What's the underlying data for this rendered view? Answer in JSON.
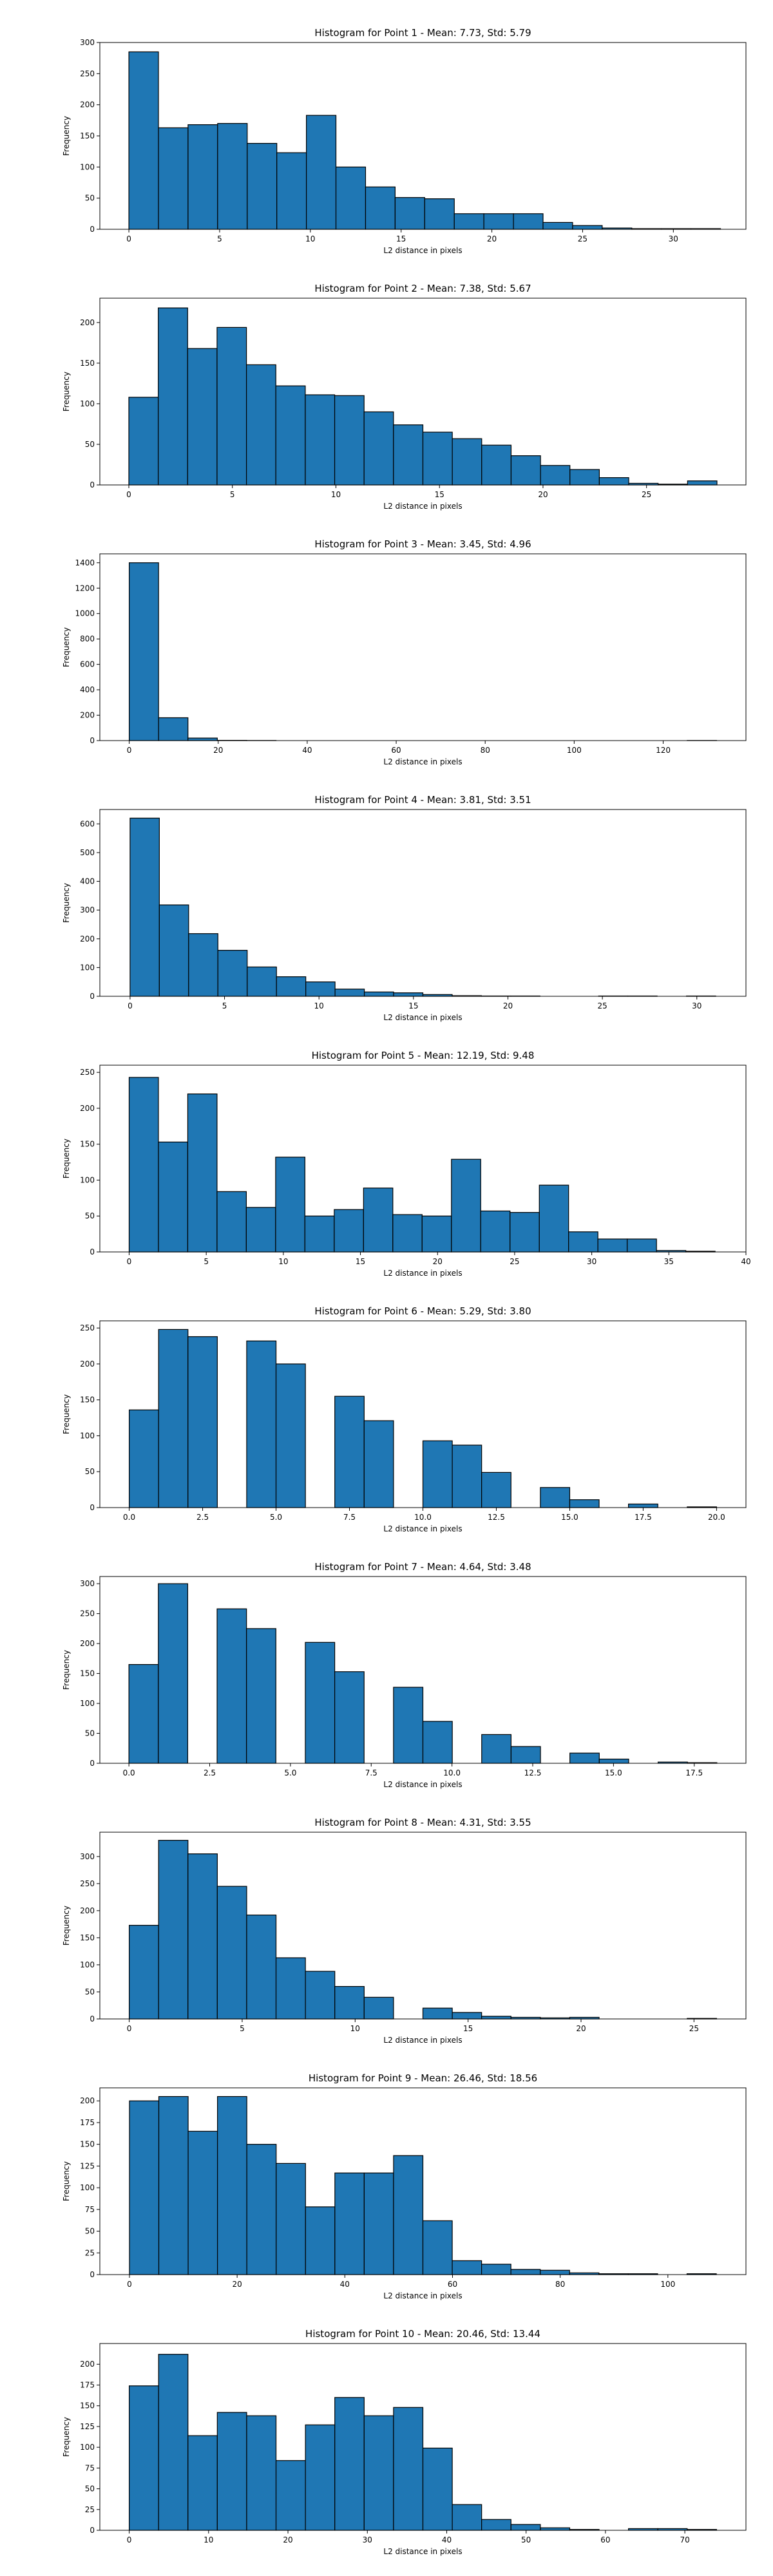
{
  "chart_data": [
    {
      "type": "bar",
      "title": "Histogram for Point 1 - Mean: 7.73, Std: 5.79",
      "xlabel": "L2 distance in pixels",
      "ylabel": "Frequency",
      "bin_start": 0,
      "bin_width": 1.63,
      "values": [
        285,
        163,
        168,
        170,
        138,
        123,
        183,
        100,
        68,
        51,
        49,
        25,
        25,
        25,
        11,
        6,
        2,
        1,
        1,
        1
      ],
      "xlim": [
        -1.6,
        34.0
      ],
      "ylim": [
        0,
        300
      ],
      "xticks": [
        0,
        5,
        10,
        15,
        20,
        25,
        30
      ],
      "xtick_labels": [
        "0",
        "5",
        "10",
        "15",
        "20",
        "25",
        "30"
      ],
      "yticks": [
        0,
        50,
        100,
        150,
        200,
        250,
        300
      ],
      "ytick_labels": [
        "0",
        "50",
        "100",
        "150",
        "200",
        "250",
        "300"
      ],
      "grid": false
    },
    {
      "type": "bar",
      "title": "Histogram for Point 2 - Mean: 7.38, Std: 5.67",
      "xlabel": "L2 distance in pixels",
      "ylabel": "Frequency",
      "bin_start": 0,
      "bin_width": 1.42,
      "values": [
        108,
        218,
        168,
        194,
        148,
        122,
        111,
        110,
        90,
        74,
        65,
        57,
        49,
        36,
        24,
        19,
        9,
        2,
        1,
        5
      ],
      "xlim": [
        -1.4,
        29.8
      ],
      "ylim": [
        0,
        230
      ],
      "xticks": [
        0,
        5,
        10,
        15,
        20,
        25
      ],
      "xtick_labels": [
        "0",
        "5",
        "10",
        "15",
        "20",
        "25"
      ],
      "yticks": [
        0,
        50,
        100,
        150,
        200
      ],
      "ytick_labels": [
        "0",
        "50",
        "100",
        "150",
        "200"
      ],
      "grid": false
    },
    {
      "type": "bar",
      "title": "Histogram for Point 3 - Mean: 3.45, Std: 4.96",
      "xlabel": "L2 distance in pixels",
      "ylabel": "Frequency",
      "bin_start": 0,
      "bin_width": 6.6,
      "values": [
        1400,
        180,
        20,
        2,
        1,
        0,
        0,
        0,
        0,
        0,
        0,
        0,
        0,
        0,
        0,
        0,
        0,
        0,
        0,
        1
      ],
      "xlim": [
        -6.6,
        138.6
      ],
      "ylim": [
        0,
        1470
      ],
      "xticks": [
        0,
        20,
        40,
        60,
        80,
        100,
        120
      ],
      "xtick_labels": [
        "0",
        "20",
        "40",
        "60",
        "80",
        "100",
        "120"
      ],
      "yticks": [
        0,
        200,
        400,
        600,
        800,
        1000,
        1200,
        1400
      ],
      "ytick_labels": [
        "0",
        "200",
        "400",
        "600",
        "800",
        "1000",
        "1200",
        "1400"
      ],
      "grid": false
    },
    {
      "type": "bar",
      "title": "Histogram for Point 4 - Mean: 3.81, Std: 3.51",
      "xlabel": "L2 distance in pixels",
      "ylabel": "Frequency",
      "bin_start": 0,
      "bin_width": 1.55,
      "values": [
        620,
        318,
        218,
        160,
        102,
        68,
        50,
        25,
        15,
        12,
        6,
        2,
        1,
        1,
        0,
        0,
        1,
        1,
        0,
        1
      ],
      "xlim": [
        -1.6,
        32.6
      ],
      "ylim": [
        0,
        650
      ],
      "xticks": [
        0,
        5,
        10,
        15,
        20,
        25,
        30
      ],
      "xtick_labels": [
        "0",
        "5",
        "10",
        "15",
        "20",
        "25",
        "30"
      ],
      "yticks": [
        0,
        100,
        200,
        300,
        400,
        500,
        600
      ],
      "ytick_labels": [
        "0",
        "100",
        "200",
        "300",
        "400",
        "500",
        "600"
      ],
      "grid": false
    },
    {
      "type": "bar",
      "title": "Histogram for Point 5 - Mean: 12.19, Std: 9.48",
      "xlabel": "L2 distance in pixels",
      "ylabel": "Frequency",
      "bin_start": 0,
      "bin_width": 1.9,
      "values": [
        243,
        153,
        220,
        84,
        62,
        132,
        50,
        59,
        89,
        52,
        50,
        129,
        57,
        55,
        93,
        28,
        18,
        18,
        2,
        1
      ],
      "xlim": [
        -1.9,
        40.0
      ],
      "ylim": [
        0,
        260
      ],
      "xticks": [
        0,
        5,
        10,
        15,
        20,
        25,
        30,
        35,
        40
      ],
      "xtick_labels": [
        "0",
        "5",
        "10",
        "15",
        "20",
        "25",
        "30",
        "35",
        "40"
      ],
      "yticks": [
        0,
        50,
        100,
        150,
        200,
        250
      ],
      "ytick_labels": [
        "0",
        "50",
        "100",
        "150",
        "200",
        "250"
      ],
      "grid": false
    },
    {
      "type": "bar",
      "title": "Histogram for Point 6 - Mean: 5.29, Std: 3.80",
      "xlabel": "L2 distance in pixels",
      "ylabel": "Frequency",
      "bin_start": 0,
      "bin_width": 1.0,
      "values": [
        136,
        248,
        238,
        0,
        232,
        200,
        0,
        155,
        121,
        0,
        93,
        87,
        49,
        0,
        28,
        11,
        0,
        5,
        0,
        1
      ],
      "xlim": [
        -1.0,
        21.0
      ],
      "ylim": [
        0,
        260
      ],
      "xticks": [
        0,
        2.5,
        5,
        7.5,
        10,
        12.5,
        15,
        17.5,
        20
      ],
      "xtick_labels": [
        "0.0",
        "2.5",
        "5.0",
        "7.5",
        "10.0",
        "12.5",
        "15.0",
        "17.5",
        "20.0"
      ],
      "yticks": [
        0,
        50,
        100,
        150,
        200,
        250
      ],
      "ytick_labels": [
        "0",
        "50",
        "100",
        "150",
        "200",
        "250"
      ],
      "grid": false
    },
    {
      "type": "bar",
      "title": "Histogram for Point 7 - Mean: 4.64, Std: 3.48",
      "xlabel": "L2 distance in pixels",
      "ylabel": "Frequency",
      "bin_start": 0,
      "bin_width": 0.91,
      "values": [
        165,
        300,
        0,
        258,
        225,
        0,
        202,
        153,
        0,
        127,
        70,
        0,
        48,
        28,
        0,
        17,
        7,
        0,
        2,
        1
      ],
      "xlim": [
        -0.9,
        19.1
      ],
      "ylim": [
        0,
        312
      ],
      "xticks": [
        0,
        2.5,
        5,
        7.5,
        10,
        12.5,
        15,
        17.5
      ],
      "xtick_labels": [
        "0.0",
        "2.5",
        "5.0",
        "7.5",
        "10.0",
        "12.5",
        "15.0",
        "17.5"
      ],
      "yticks": [
        0,
        50,
        100,
        150,
        200,
        250,
        300
      ],
      "ytick_labels": [
        "0",
        "50",
        "100",
        "150",
        "200",
        "250",
        "300"
      ],
      "grid": false
    },
    {
      "type": "bar",
      "title": "Histogram for Point 8 - Mean: 4.31, Std: 3.55",
      "xlabel": "L2 distance in pixels",
      "ylabel": "Frequency",
      "bin_start": 0,
      "bin_width": 1.3,
      "values": [
        173,
        330,
        305,
        245,
        192,
        113,
        88,
        60,
        40,
        0,
        20,
        12,
        5,
        3,
        2,
        3,
        0,
        0,
        0,
        1
      ],
      "xlim": [
        -1.3,
        27.3
      ],
      "ylim": [
        0,
        345
      ],
      "xticks": [
        0,
        5,
        10,
        15,
        20,
        25
      ],
      "xtick_labels": [
        "0",
        "5",
        "10",
        "15",
        "20",
        "25"
      ],
      "yticks": [
        0,
        50,
        100,
        150,
        200,
        250,
        300
      ],
      "ytick_labels": [
        "0",
        "50",
        "100",
        "150",
        "200",
        "250",
        "300"
      ],
      "grid": false
    },
    {
      "type": "bar",
      "title": "Histogram for Point 9 - Mean: 26.46, Std: 18.56",
      "xlabel": "L2 distance in pixels",
      "ylabel": "Frequency",
      "bin_start": 0,
      "bin_width": 5.45,
      "values": [
        200,
        205,
        165,
        205,
        150,
        128,
        78,
        117,
        117,
        137,
        62,
        16,
        12,
        6,
        5,
        2,
        1,
        1,
        0,
        1
      ],
      "xlim": [
        -5.5,
        114.5
      ],
      "ylim": [
        0,
        215
      ],
      "xticks": [
        0,
        20,
        40,
        60,
        80,
        100
      ],
      "xtick_labels": [
        "0",
        "20",
        "40",
        "60",
        "80",
        "100"
      ],
      "yticks": [
        0,
        25,
        50,
        75,
        100,
        125,
        150,
        175,
        200
      ],
      "ytick_labels": [
        "0",
        "25",
        "50",
        "75",
        "100",
        "125",
        "150",
        "175",
        "200"
      ],
      "grid": false
    },
    {
      "type": "bar",
      "title": "Histogram for Point 10 - Mean: 20.46, Std: 13.44",
      "xlabel": "L2 distance in pixels",
      "ylabel": "Frequency",
      "bin_start": 0,
      "bin_width": 3.7,
      "values": [
        174,
        212,
        114,
        142,
        138,
        84,
        127,
        160,
        138,
        148,
        99,
        31,
        13,
        7,
        3,
        1,
        0,
        2,
        2,
        1
      ],
      "xlim": [
        -3.7,
        77.7
      ],
      "ylim": [
        0,
        225
      ],
      "xticks": [
        0,
        10,
        20,
        30,
        40,
        50,
        60,
        70
      ],
      "xtick_labels": [
        "0",
        "10",
        "20",
        "30",
        "40",
        "50",
        "60",
        "70"
      ],
      "yticks": [
        0,
        25,
        50,
        75,
        100,
        125,
        150,
        175,
        200
      ],
      "ytick_labels": [
        "0",
        "25",
        "50",
        "75",
        "100",
        "125",
        "150",
        "175",
        "200"
      ],
      "grid": false
    }
  ]
}
